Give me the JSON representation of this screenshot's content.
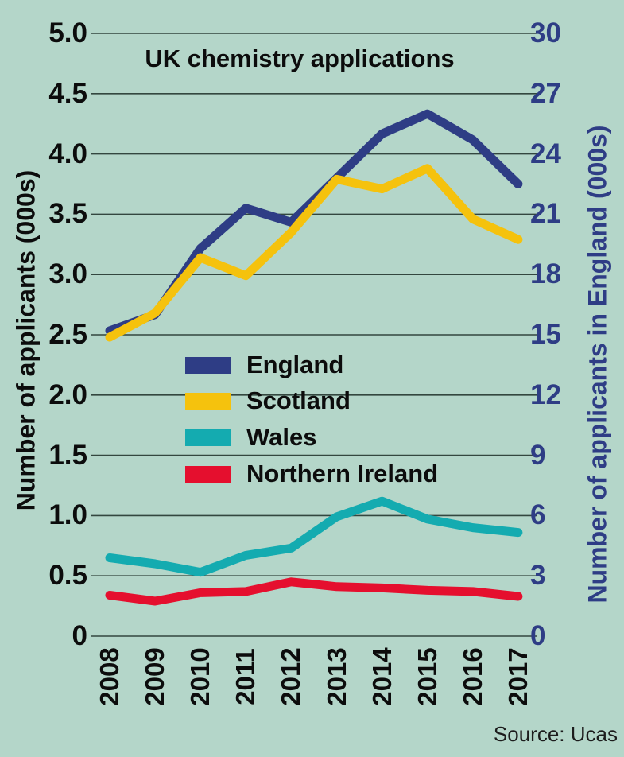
{
  "title": "UK chemistry applications",
  "source": "Source: Ucas",
  "colors": {
    "background": "#b4d6c9",
    "grid": "#33473f",
    "black_text": "#0c0c0c",
    "right_axis_text": "#2e3d85"
  },
  "left_axis": {
    "title": "Number of applicants (000s)",
    "ticks": [
      "5.0",
      "4.5",
      "4.0",
      "3.5",
      "3.0",
      "2.5",
      "2.0",
      "1.5",
      "1.0",
      "0.5",
      "0"
    ],
    "min": 0,
    "max": 5
  },
  "right_axis": {
    "title": "Number of applicants in England (000s)",
    "ticks": [
      "30",
      "27",
      "24",
      "21",
      "18",
      "15",
      "12",
      "9",
      "6",
      "3",
      "0"
    ],
    "min": 0,
    "max": 30
  },
  "legend": [
    {
      "label": "England",
      "color": "#2e3d85"
    },
    {
      "label": "Scotland",
      "color": "#f5c20d"
    },
    {
      "label": "Wales",
      "color": "#14abb0"
    },
    {
      "label": "Northern Ireland",
      "color": "#e50f2e"
    }
  ],
  "chart_data": {
    "type": "line",
    "title": "UK chemistry applications",
    "x": [
      2008,
      2009,
      2010,
      2011,
      2012,
      2013,
      2014,
      2015,
      2016,
      2017
    ],
    "xlabel": "",
    "ylabel_left": "Number of applicants (000s)",
    "ylabel_right": "Number of applicants in England (000s)",
    "ylim_left": [
      0,
      5
    ],
    "ylim_right": [
      0,
      30
    ],
    "grid": true,
    "legend_position": "center-left",
    "series": [
      {
        "name": "England",
        "axis": "right",
        "color": "#2e3d85",
        "values": [
          15.2,
          16.0,
          19.3,
          21.3,
          20.6,
          22.8,
          25.0,
          26.0,
          24.7,
          22.5
        ]
      },
      {
        "name": "Scotland",
        "axis": "left",
        "color": "#f5c20d",
        "values": [
          2.48,
          2.68,
          3.14,
          2.99,
          3.35,
          3.79,
          3.71,
          3.88,
          3.46,
          3.29
        ]
      },
      {
        "name": "Wales",
        "axis": "left",
        "color": "#14abb0",
        "values": [
          0.65,
          0.6,
          0.53,
          0.67,
          0.73,
          0.99,
          1.12,
          0.97,
          0.9,
          0.86
        ]
      },
      {
        "name": "Northern Ireland",
        "axis": "left",
        "color": "#e50f2e",
        "values": [
          0.34,
          0.29,
          0.36,
          0.37,
          0.45,
          0.41,
          0.4,
          0.38,
          0.37,
          0.33
        ]
      }
    ]
  }
}
